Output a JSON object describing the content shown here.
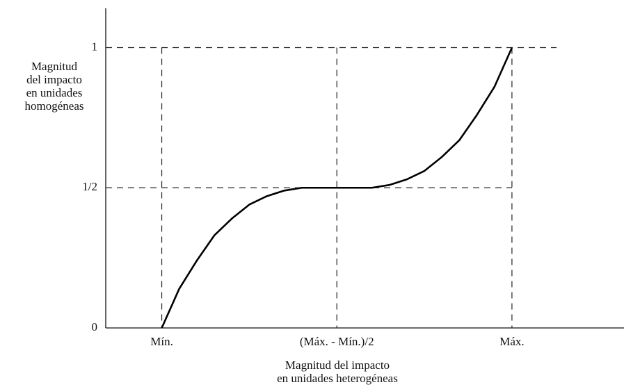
{
  "chart_data": {
    "type": "line",
    "ylabel": [
      "Magnitud",
      "del impacto",
      "en unidades",
      "homogéneas"
    ],
    "xlabel": [
      "Magnitud del impacto",
      "en unidades heterogéneas"
    ],
    "x": [
      0,
      0.05,
      0.1,
      0.15,
      0.2,
      0.25,
      0.3,
      0.35,
      0.4,
      0.45,
      0.5,
      0.55,
      0.6,
      0.65,
      0.7,
      0.75,
      0.8,
      0.85,
      0.9,
      0.95,
      1
    ],
    "series": [
      {
        "color": "#000000",
        "values": [
          0,
          0.14,
          0.24,
          0.33,
          0.39,
          0.44,
          0.47,
          0.49,
          0.5,
          0.5,
          0.5,
          0.5,
          0.5,
          0.51,
          0.53,
          0.56,
          0.61,
          0.67,
          0.76,
          0.86,
          1
        ]
      }
    ],
    "xlim": [
      -0.16,
      1.32
    ],
    "ylim": [
      0,
      1.14
    ],
    "xticks": [
      {
        "value": 0,
        "label": "Mín."
      },
      {
        "value": 0.5,
        "label": "(Máx. - Mín.)/2"
      },
      {
        "value": 1,
        "label": "Máx."
      }
    ],
    "yticks": [
      0,
      {
        "value": 0.5,
        "label": "1/2"
      },
      1
    ],
    "grid": true
  }
}
